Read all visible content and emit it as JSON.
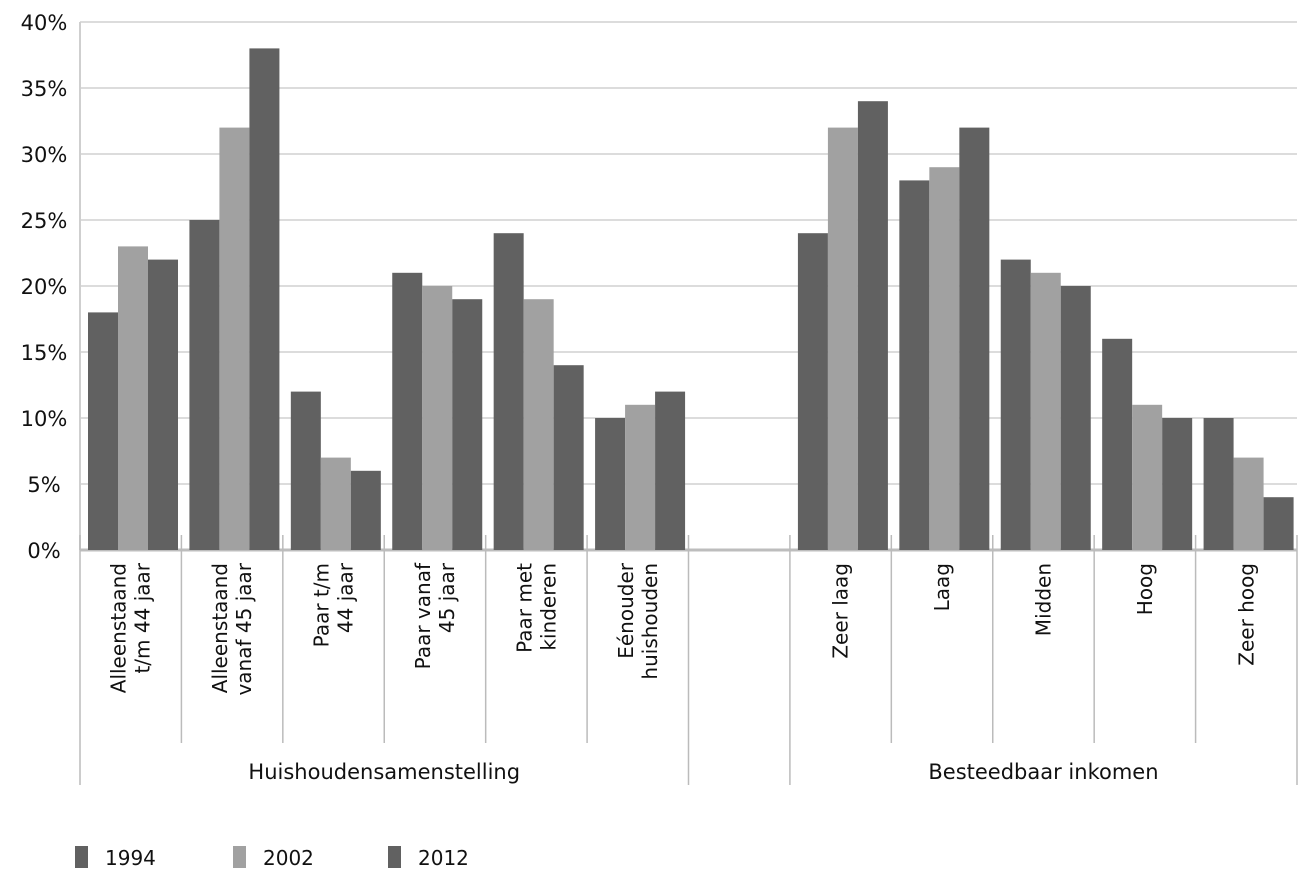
{
  "chart_data": {
    "type": "bar",
    "title": "",
    "xlabel": "",
    "ylabel": "",
    "ylim": [
      0,
      40
    ],
    "yticks": [
      "0%",
      "5%",
      "10%",
      "15%",
      "20%",
      "25%",
      "30%",
      "35%",
      "40%"
    ],
    "grid": true,
    "legend_position": "bottom-left",
    "groups": [
      {
        "name": "Huishoudensamenstelling",
        "categories": [
          [
            "Alleenstaand",
            "t/m 44 jaar"
          ],
          [
            "Alleenstaand",
            "vanaf 45 jaar"
          ],
          [
            "Paar t/m",
            "44 jaar"
          ],
          [
            "Paar vanaf",
            "45 jaar"
          ],
          [
            "Paar met",
            "kinderen"
          ],
          [
            "Eénouder",
            "huishouden"
          ]
        ]
      },
      {
        "name": "Besteedbaar inkomen",
        "categories": [
          [
            "Zeer laag"
          ],
          [
            "Laag"
          ],
          [
            "Midden"
          ],
          [
            "Hoog"
          ],
          [
            "Zeer hoog"
          ]
        ]
      }
    ],
    "series": [
      {
        "name": "1994",
        "color": "#616161",
        "values": [
          18,
          25,
          12,
          21,
          24,
          10,
          24,
          28,
          22,
          16,
          10
        ]
      },
      {
        "name": "2002",
        "color": "#a1a1a1",
        "values": [
          23,
          32,
          7,
          20,
          19,
          11,
          32,
          29,
          21,
          11,
          7
        ]
      },
      {
        "name": "2012",
        "color": "#616161",
        "values": [
          22,
          38,
          6,
          19,
          14,
          12,
          34,
          32,
          20,
          10,
          4
        ]
      }
    ]
  }
}
